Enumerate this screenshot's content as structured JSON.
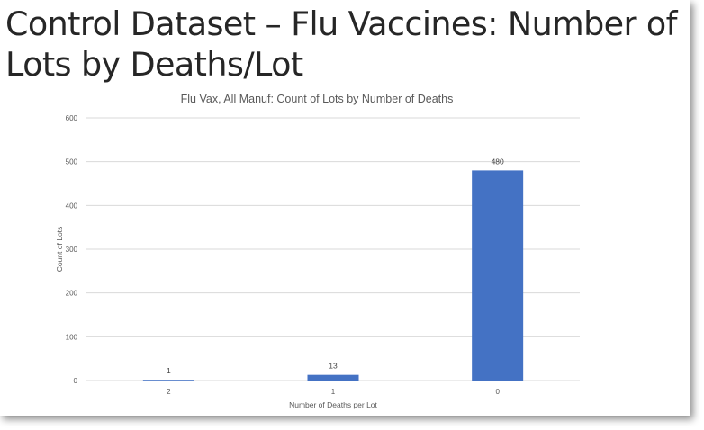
{
  "slide": {
    "title": "Control Dataset – Flu Vaccines: Number of Lots by Deaths/Lot"
  },
  "colors": {
    "bar": "#4472c4",
    "gridline": "#d9d9d9",
    "axis_text": "#595959",
    "title_text": "#262626"
  },
  "chart_data": {
    "type": "bar",
    "title": "Flu Vax, All Manuf: Count of Lots by Number of Deaths",
    "xlabel": "Number of Deaths per Lot",
    "ylabel": "Count of Lots",
    "categories": [
      "2",
      "1",
      "0"
    ],
    "values": [
      1,
      13,
      480
    ],
    "data_labels": [
      "1",
      "13",
      "480"
    ],
    "ylim": [
      0,
      600
    ],
    "yticks": [
      0,
      100,
      200,
      300,
      400,
      500,
      600
    ],
    "grid": true,
    "legend": "none"
  }
}
